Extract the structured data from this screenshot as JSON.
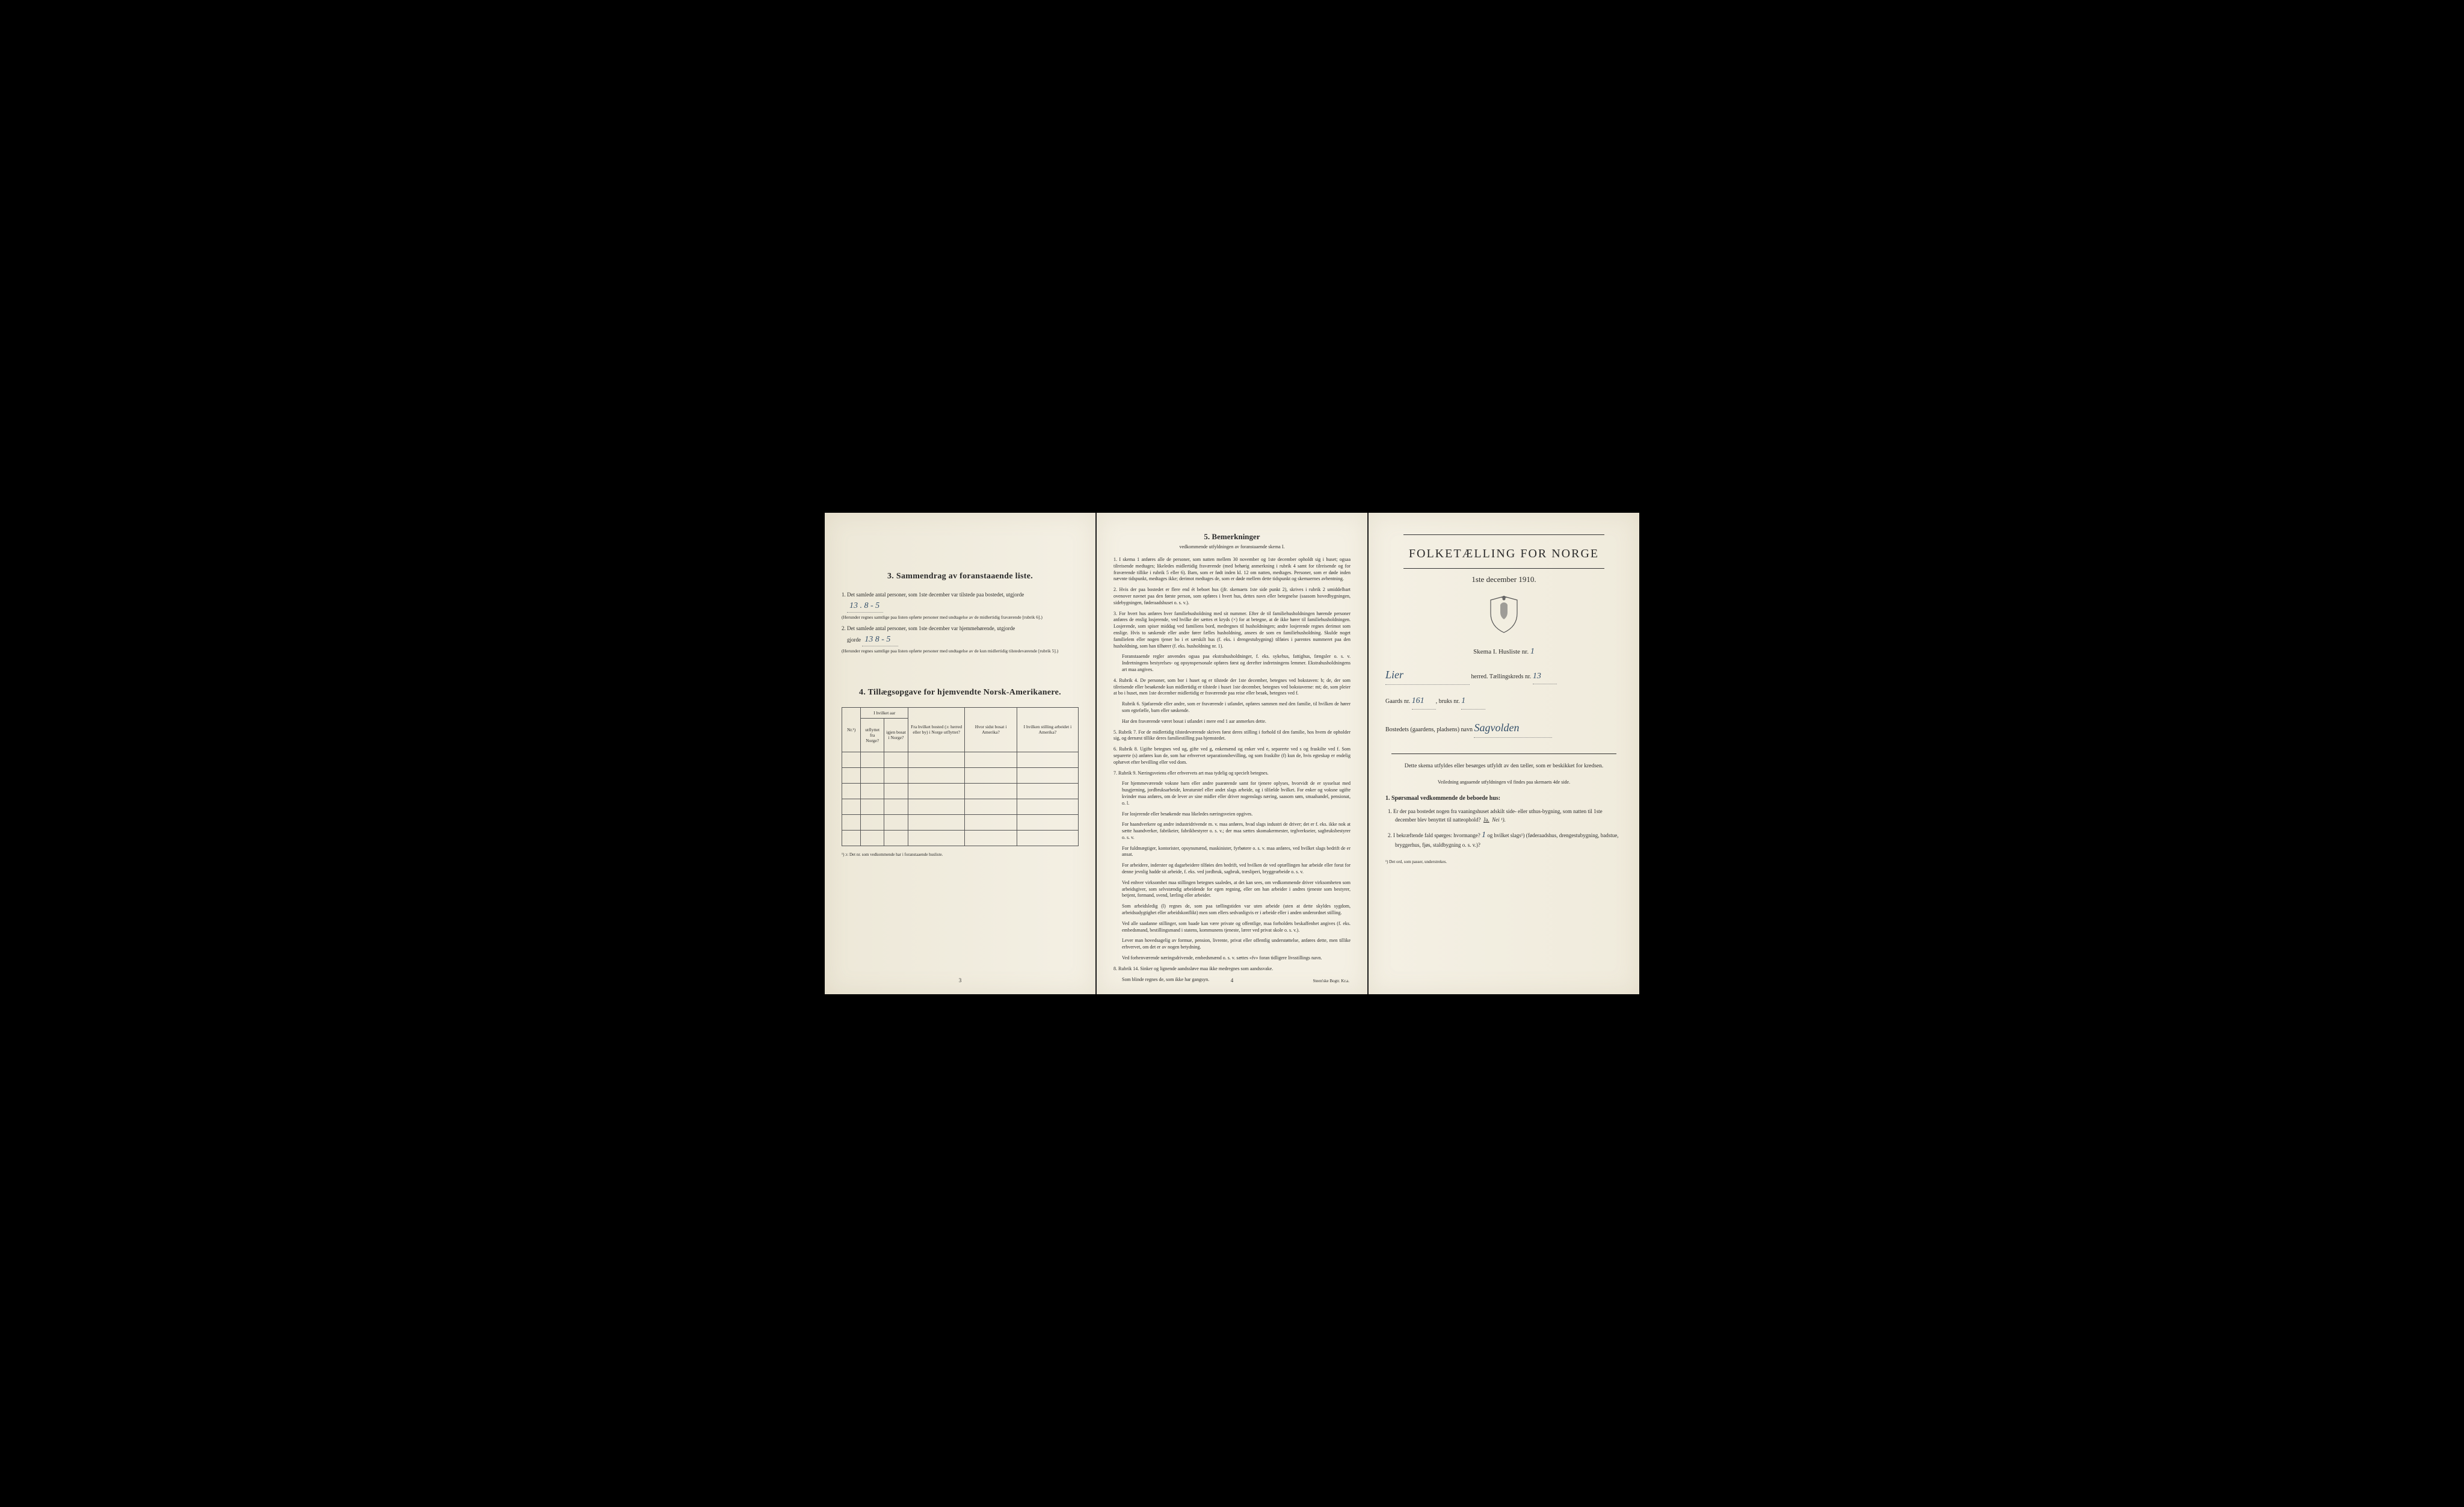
{
  "page1": {
    "section3_title": "3.   Sammendrag av foranstaaende liste.",
    "item1_text": "Det samlede antal personer, som 1ste december var tilstede paa bostedet, utgjorde",
    "item1_value": "13 .  8 - 5",
    "item1_note": "(Herunder regnes samtlige paa listen opførte personer med undtagelse av de midlertidig fraværende [rubrik 6].)",
    "item2_text": "Det samlede antal personer, som 1ste december var hjemmehørende, utgjorde",
    "item2_value": "13   8 - 5",
    "item2_note": "(Herunder regnes samtlige paa listen opførte personer med undtagelse av de kun midlertidig tilstedeværende [rubrik 5].)",
    "section4_title": "4.  Tillægsopgave for hjemvendte Norsk-Amerikanere.",
    "table_headers": {
      "col1": "Nr.¹)",
      "col2a": "I hvilket aar",
      "col2b_left": "utflyttet fra Norge?",
      "col2b_right": "igjen bosat i Norge?",
      "col3": "Fra hvilket bosted (ɔ: herred eller by) i Norge utflyttet?",
      "col4": "Hvor sidst bosat i Amerika?",
      "col5": "I hvilken stilling arbeidet i Amerika?"
    },
    "table_footnote": "¹) ɔ: Det nr. som vedkommende har i foranstaaende husliste.",
    "page_number": "3"
  },
  "page2": {
    "section_title": "5.   Bemerkninger",
    "section_sub": "vedkommende utfyldningen av foranstaaende skema I.",
    "rules": [
      {
        "n": "1.",
        "t": "I skema 1 anføres alle de personer, som natten mellem 30 november og 1ste december opholdt sig i huset; ogsaa tilreisende medtages; likeledes midlertidig fraværende (med behørig anmerkning i rubrik 4 samt for tilreisende og for fraværende tillike i rubrik 5 eller 6). Barn, som er født inden kl. 12 om natten, medtages. Personer, som er døde inden nævnte tidspunkt, medtages ikke; derimot medtages de, som er døde mellem dette tidspunkt og skemaernes avhentning."
      },
      {
        "n": "2.",
        "t": "Hvis der paa bostedet er flere end ét beboet hus (jfr. skemaets 1ste side punkt 2), skrives i rubrik 2 umiddelbart ovenover navnet paa den første person, som opføres i hvert hus, dettes navn eller betegnelse (saasom hovedbygningen, sidebygningen, føderaadshuset o. s. v.)."
      },
      {
        "n": "3.",
        "t": "For hvert hus anføres hver familiehusholdning med sit nummer. Efter de til familiehusholdningen hørende personer anføres de enslig losjerende, ved hvilke der sættes et kryds (×) for at betegne, at de ikke hører til familiehusholdningen. Losjerende, som spiser middag ved familiens bord, medregnes til husholdningen; andre losjerende regnes derimot som enslige. Hvis to søskende eller andre fører fælles husholdning, ansees de som en familiehusholdning. Skulde noget familielem eller nogen tjener bo i et særskilt hus (f. eks. i drengestubygning) tilføies i parentes nummeret paa den husholdning, som han tilhører (f. eks. husholdning nr. 1).",
        "extra": "Foranstaaende regler anvendes ogsaa paa ekstrahusholdninger, f. eks. sykehus, fattighus, fængsler o. s. v. Indretningens bestyrelses- og opsynspersonale opføres først og derefter indretningens lemmer. Ekstrahusholdningens art maa angives."
      },
      {
        "n": "4.",
        "t": "Rubrik 4. De personer, som bor i huset og er tilstede der 1ste december, betegnes ved bokstaven: b; de, der som tilreisende eller besøkende kun midlertidig er tilstede i huset 1ste december, betegnes ved bokstaverne: mt; de, som pleier at bo i huset, men 1ste december midlertidig er fraværende paa reise eller besøk, betegnes ved f.",
        "extra": "Rubrik 6. Sjøfarende eller andre, som er fraværende i utlandet, opføres sammen med den familie, til hvilken de hører som egtefælle, barn eller søskende.",
        "extra2": "Har den fraværende været bosat i utlandet i mere end 1 aar anmerkes dette."
      },
      {
        "n": "5.",
        "t": "Rubrik 7. For de midlertidig tilstedeværende skrives først deres stilling i forhold til den familie, hos hvem de opholder sig, og dernæst tillike deres familiestilling paa hjemstedet."
      },
      {
        "n": "6.",
        "t": "Rubrik 8. Ugifte betegnes ved ug, gifte ved g, enkemænd og enker ved e, separerte ved s og fraskilte ved f. Som separerte (s) anføres kun de, som har erhvervet separationsbevilling, og som fraskilte (f) kun de, hvis egteskap er endelig ophævet efter bevilling eller ved dom."
      },
      {
        "n": "7.",
        "t": "Rubrik 9. Næringsveiens eller erhvervets art maa tydelig og specielt betegnes.",
        "extra": "For hjemmeværende voksne barn eller andre paarørende samt for tjenere oplyses, hvorvidt de er sysselsat med husgjerning, jordbruksarbeide, kreaturstel eller andet slags arbeide, og i tilfælde hvilket. For enker og voksne ugifte kvinder maa anføres, om de lever av sine midler eller driver nogenslags næring, saasom søm, smaahandel, pensionat, o. l.",
        "extra2": "For losjerende eller besøkende maa likeledes næringsveien opgives.",
        "extra3": "For haandverkere og andre industridrivende m. v. maa anføres, hvad slags industri de driver; det er f. eks. ikke nok at sætte haandverker, fabrikeier, fabrikbestyrer o. s. v.; der maa sættes skomakermester, teglverkseier, sagbruksbestyrer o. s. v.",
        "extra4": "For fuldmægtiger, kontorister, opsynsmænd, maskinister, fyrbøtere o. s. v. maa anføres, ved hvilket slags bedrift de er ansat.",
        "extra5": "For arbeidere, inderster og dagarbeidere tilføies den bedrift, ved hvilken de ved optællingen har arbeide eller forut for denne jevnlig hadde sit arbeide, f. eks. ved jordbruk, sagbruk, træsliperi, bryggearbeide o. s. v.",
        "extra6": "Ved enhver virksomhet maa stillingen betegnes saaledes, at det kan sees, om vedkommende driver virksomheten som arbeidsgiver, som selvstændig arbeidende for egen regning, eller om han arbeider i andres tjeneste som bestyrer, betjent, formand, svend, lærling eller arbeider.",
        "extra7": "Som arbeidsledig (l) regnes de, som paa tællingstiden var uten arbeide (uten at dette skyldes sygdom, arbeidsudygtighet eller arbeidskonflikt) men som ellers sedvanligvis er i arbeide eller i anden underordnet stilling.",
        "extra8": "Ved alle saadanne stillinger, som baade kan være private og offentlige, maa forholdets beskaffenhet angives (f. eks. embedsmand, bestillingsmand i statens, kommunens tjeneste, lærer ved privat skole o. s. v.).",
        "extra9": "Lever man hovedsagelig av formue, pension, livrente, privat eller offentlig understøttelse, anføres dette, men tillike erhvervet, om det er av nogen betydning.",
        "extra10": "Ved forhenværende næringsdrivende, embedsmænd o. s. v. sættes «fv» foran tidligere livsstillings navn."
      },
      {
        "n": "8.",
        "t": "Rubrik 14. Sinker og lignende aandssløve maa ikke medregnes som aandssvake.",
        "extra": "Som blinde regnes de, som ikke har gangsyn."
      }
    ],
    "page_number": "4",
    "printer": "Steen'ske Bogtr. Kr.a."
  },
  "page3": {
    "main_title": "FOLKETÆLLING FOR NORGE",
    "date": "1ste december 1910.",
    "skema_label": "Skema I.  Husliste nr.",
    "husliste_nr": "1",
    "herred_value": "Lier",
    "herred_label": "herred.   Tællingskreds nr.",
    "kreds_nr": "13",
    "gaards_label": "Gaards nr.",
    "gaards_nr": "161",
    "bruks_label": "bruks nr.",
    "bruks_nr": "1",
    "bosted_label": "Bostedets (gaardens, pladsens) navn",
    "bosted_value": "Sagvolden",
    "instr1": "Dette skema utfyldes eller besørges utfyldt av den tæller, som er beskikket for kredsen.",
    "instr2": "Veiledning angaaende utfyldningen vil findes paa skemaets 4de side.",
    "q_header": "1. Spørsmaal vedkommende de beboede hus:",
    "q1": "1.  Er der paa bostedet nogen fra vaaningshuset adskilt side- eller uthus-bygning, som natten til 1ste december blev benyttet til natteophold?",
    "q1_ja": "Ja.",
    "q1_nei": "Nei ¹).",
    "q2": "2.  I bekræftende fald spørges: hvormange?",
    "q2_value": "1",
    "q2_cont": "og hvilket slags¹) (føderaadshus, drengestubygning, badstue, bryggerhus, fjøs, staldbygning o. s. v.)?",
    "footnote3": "¹) Det ord, som passer, understrekes.",
    "crest_color": "#6b6b6b"
  },
  "colors": {
    "paper": "#f4f0e4",
    "ink": "#2a2a2a",
    "handwriting": "#35506a",
    "black_bg": "#000000"
  }
}
